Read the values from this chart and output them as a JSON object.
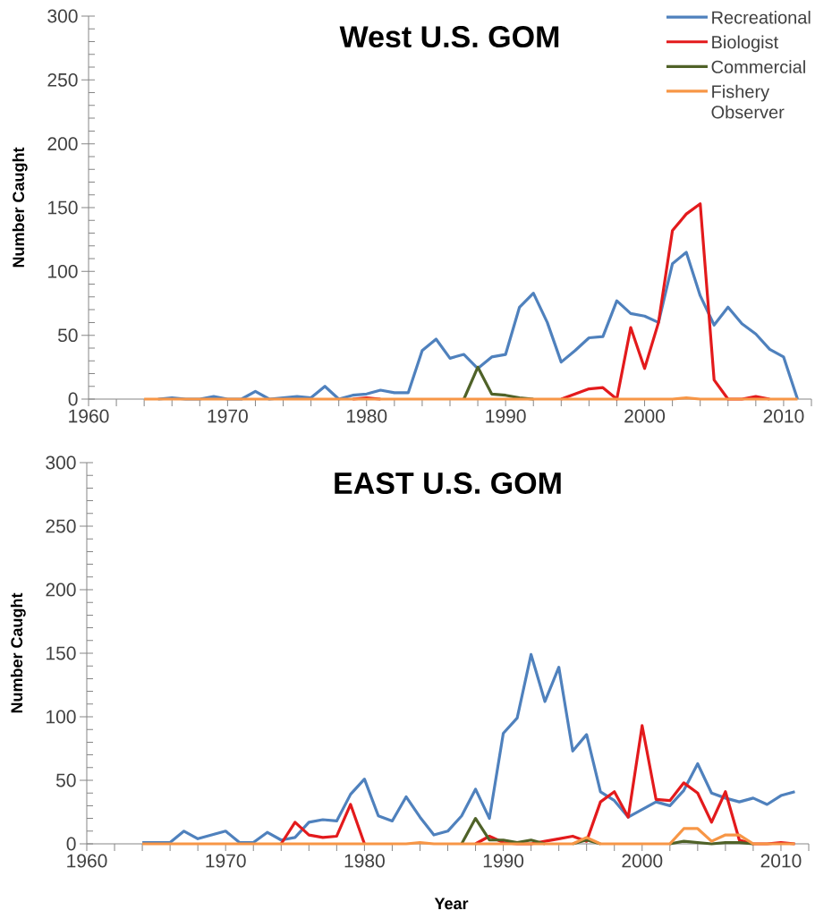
{
  "chart_data": [
    {
      "type": "line",
      "title": "West U.S. GOM",
      "ylabel": "Number Caught",
      "legend": "top right",
      "xlim": [
        1960,
        2012
      ],
      "ylim": [
        0,
        300
      ],
      "xticks": [
        1960,
        {
          "value": 1962,
          "label": null
        },
        {
          "value": 1964,
          "label": null
        },
        {
          "value": 1966,
          "label": null
        },
        {
          "value": 1968,
          "label": null
        },
        1970,
        {
          "value": 1972,
          "label": null
        },
        {
          "value": 1974,
          "label": null
        },
        {
          "value": 1976,
          "label": null
        },
        {
          "value": 1978,
          "label": null
        },
        1980,
        {
          "value": 1982,
          "label": null
        },
        {
          "value": 1984,
          "label": null
        },
        {
          "value": 1986,
          "label": null
        },
        {
          "value": 1988,
          "label": null
        },
        1990,
        {
          "value": 1992,
          "label": null
        },
        {
          "value": 1994,
          "label": null
        },
        {
          "value": 1996,
          "label": null
        },
        {
          "value": 1998,
          "label": null
        },
        2000,
        {
          "value": 2002,
          "label": null
        },
        {
          "value": 2004,
          "label": null
        },
        {
          "value": 2006,
          "label": null
        },
        {
          "value": 2008,
          "label": null
        },
        2010,
        {
          "value": 2012,
          "label": null
        }
      ],
      "yticks": [
        0,
        {
          "value": 10,
          "label": null
        },
        {
          "value": 20,
          "label": null
        },
        {
          "value": 30,
          "label": null
        },
        {
          "value": 40,
          "label": null
        },
        50,
        {
          "value": 60,
          "label": null
        },
        {
          "value": 70,
          "label": null
        },
        {
          "value": 80,
          "label": null
        },
        {
          "value": 90,
          "label": null
        },
        100,
        {
          "value": 110,
          "label": null
        },
        {
          "value": 120,
          "label": null
        },
        {
          "value": 130,
          "label": null
        },
        {
          "value": 140,
          "label": null
        },
        150,
        {
          "value": 160,
          "label": null
        },
        {
          "value": 170,
          "label": null
        },
        {
          "value": 180,
          "label": null
        },
        {
          "value": 190,
          "label": null
        },
        200,
        {
          "value": 210,
          "label": null
        },
        {
          "value": 220,
          "label": null
        },
        {
          "value": 230,
          "label": null
        },
        {
          "value": 240,
          "label": null
        },
        250,
        {
          "value": 260,
          "label": null
        },
        {
          "value": 270,
          "label": null
        },
        {
          "value": 280,
          "label": null
        },
        {
          "value": 290,
          "label": null
        },
        300
      ],
      "x": [
        1964,
        1965,
        1966,
        1967,
        1968,
        1969,
        1970,
        1971,
        1972,
        1973,
        1974,
        1975,
        1976,
        1977,
        1978,
        1979,
        1980,
        1981,
        1982,
        1983,
        1984,
        1985,
        1986,
        1987,
        1988,
        1989,
        1990,
        1991,
        1992,
        1993,
        1994,
        1995,
        1996,
        1997,
        1998,
        1999,
        2000,
        2001,
        2002,
        2003,
        2004,
        2005,
        2006,
        2007,
        2008,
        2009,
        2010,
        2011
      ],
      "series": [
        {
          "name": "Recreational",
          "color": "#4f81bd",
          "values": [
            null,
            0,
            1,
            0,
            0,
            2,
            0,
            0,
            6,
            0,
            1,
            2,
            1,
            10,
            0,
            3,
            4,
            7,
            5,
            5,
            38,
            47,
            32,
            35,
            24,
            33,
            35,
            72,
            83,
            60,
            29,
            38,
            48,
            49,
            77,
            67,
            65,
            60,
            106,
            115,
            81,
            58,
            72,
            59,
            51,
            39,
            33,
            0
          ]
        },
        {
          "name": "Biologist",
          "color": "#e31a1c",
          "values": [
            null,
            null,
            null,
            null,
            null,
            null,
            null,
            null,
            null,
            null,
            null,
            null,
            null,
            null,
            null,
            0,
            1,
            0,
            null,
            null,
            null,
            null,
            null,
            null,
            null,
            null,
            null,
            null,
            null,
            null,
            0,
            4,
            8,
            9,
            0,
            56,
            24,
            60,
            132,
            145,
            153,
            15,
            0,
            0,
            2,
            0,
            null,
            null
          ]
        },
        {
          "name": "Commercial",
          "color": "#4f6228",
          "values": [
            null,
            null,
            null,
            null,
            null,
            null,
            null,
            null,
            null,
            null,
            null,
            null,
            null,
            null,
            null,
            null,
            null,
            null,
            null,
            null,
            null,
            null,
            null,
            0,
            25,
            4,
            3,
            1,
            0,
            null,
            null,
            null,
            null,
            null,
            null,
            null,
            null,
            null,
            null,
            null,
            null,
            null,
            null,
            null,
            null,
            null,
            null,
            null
          ]
        },
        {
          "name": "Fishery Observer",
          "color": "#f79646",
          "values": [
            0,
            0,
            0,
            0,
            0,
            0,
            0,
            0,
            0,
            0,
            0,
            0,
            0,
            0,
            0,
            0,
            0,
            0,
            0,
            0,
            0,
            0,
            0,
            0,
            0,
            0,
            0,
            0,
            0,
            0,
            0,
            0,
            0,
            0,
            0,
            0,
            0,
            0,
            0,
            1,
            0,
            0,
            0,
            0,
            0,
            0,
            0,
            0
          ]
        }
      ]
    },
    {
      "type": "line",
      "title": "EAST U.S. GOM",
      "ylabel": "Number Caught",
      "xlabel": "Year",
      "xlim": [
        1960,
        2012
      ],
      "ylim": [
        0,
        300
      ],
      "xticks": [
        1960,
        {
          "value": 1962,
          "label": null
        },
        {
          "value": 1964,
          "label": null
        },
        {
          "value": 1966,
          "label": null
        },
        {
          "value": 1968,
          "label": null
        },
        1970,
        {
          "value": 1972,
          "label": null
        },
        {
          "value": 1974,
          "label": null
        },
        {
          "value": 1976,
          "label": null
        },
        {
          "value": 1978,
          "label": null
        },
        1980,
        {
          "value": 1982,
          "label": null
        },
        {
          "value": 1984,
          "label": null
        },
        {
          "value": 1986,
          "label": null
        },
        {
          "value": 1988,
          "label": null
        },
        1990,
        {
          "value": 1992,
          "label": null
        },
        {
          "value": 1994,
          "label": null
        },
        {
          "value": 1996,
          "label": null
        },
        {
          "value": 1998,
          "label": null
        },
        2000,
        {
          "value": 2002,
          "label": null
        },
        {
          "value": 2004,
          "label": null
        },
        {
          "value": 2006,
          "label": null
        },
        {
          "value": 2008,
          "label": null
        },
        2010,
        {
          "value": 2012,
          "label": null
        }
      ],
      "yticks": [
        0,
        {
          "value": 10,
          "label": null
        },
        {
          "value": 20,
          "label": null
        },
        {
          "value": 30,
          "label": null
        },
        {
          "value": 40,
          "label": null
        },
        50,
        {
          "value": 60,
          "label": null
        },
        {
          "value": 70,
          "label": null
        },
        {
          "value": 80,
          "label": null
        },
        {
          "value": 90,
          "label": null
        },
        100,
        {
          "value": 110,
          "label": null
        },
        {
          "value": 120,
          "label": null
        },
        {
          "value": 130,
          "label": null
        },
        {
          "value": 140,
          "label": null
        },
        150,
        {
          "value": 160,
          "label": null
        },
        {
          "value": 170,
          "label": null
        },
        {
          "value": 180,
          "label": null
        },
        {
          "value": 190,
          "label": null
        },
        200,
        {
          "value": 210,
          "label": null
        },
        {
          "value": 220,
          "label": null
        },
        {
          "value": 230,
          "label": null
        },
        {
          "value": 240,
          "label": null
        },
        250,
        {
          "value": 260,
          "label": null
        },
        {
          "value": 270,
          "label": null
        },
        {
          "value": 280,
          "label": null
        },
        {
          "value": 290,
          "label": null
        },
        300
      ],
      "x": [
        1964,
        1965,
        1966,
        1967,
        1968,
        1969,
        1970,
        1971,
        1972,
        1973,
        1974,
        1975,
        1976,
        1977,
        1978,
        1979,
        1980,
        1981,
        1982,
        1983,
        1984,
        1985,
        1986,
        1987,
        1988,
        1989,
        1990,
        1991,
        1992,
        1993,
        1994,
        1995,
        1996,
        1997,
        1998,
        1999,
        2000,
        2001,
        2002,
        2003,
        2004,
        2005,
        2006,
        2007,
        2008,
        2009,
        2010,
        2011
      ],
      "series": [
        {
          "color": "#4f81bd",
          "values": [
            1,
            1,
            1,
            10,
            4,
            7,
            10,
            1,
            1,
            9,
            3,
            5,
            17,
            19,
            18,
            39,
            51,
            22,
            18,
            37,
            21,
            7,
            10,
            22,
            43,
            20,
            87,
            99,
            149,
            112,
            139,
            73,
            86,
            41,
            34,
            21,
            27,
            33,
            30,
            42,
            63,
            40,
            36,
            33,
            36,
            31,
            38,
            41
          ]
        },
        {
          "color": "#e31a1c",
          "values": [
            null,
            null,
            null,
            null,
            null,
            null,
            null,
            null,
            null,
            null,
            0,
            17,
            7,
            5,
            6,
            31,
            0,
            null,
            null,
            null,
            null,
            null,
            null,
            null,
            0,
            6,
            1,
            0,
            0,
            2,
            4,
            6,
            2,
            33,
            41,
            21,
            93,
            35,
            34,
            48,
            40,
            17,
            41,
            3,
            0,
            0,
            1,
            0
          ]
        },
        {
          "color": "#4f6228",
          "values": [
            null,
            null,
            null,
            null,
            null,
            null,
            null,
            null,
            null,
            null,
            null,
            null,
            null,
            null,
            null,
            null,
            null,
            null,
            null,
            null,
            null,
            null,
            null,
            0,
            20,
            3,
            3,
            1,
            3,
            0,
            null,
            0,
            3,
            0,
            null,
            null,
            null,
            null,
            0,
            2,
            1,
            0,
            1,
            1,
            0,
            null,
            null,
            null
          ]
        },
        {
          "color": "#f79646",
          "values": [
            0,
            0,
            0,
            0,
            0,
            0,
            0,
            0,
            0,
            0,
            0,
            0,
            0,
            0,
            0,
            0,
            0,
            0,
            0,
            0,
            1,
            0,
            0,
            0,
            0,
            0,
            0,
            0,
            0,
            0,
            0,
            0,
            5,
            0,
            0,
            0,
            0,
            0,
            0,
            12,
            12,
            2,
            7,
            7,
            0,
            0,
            0,
            0
          ]
        }
      ]
    }
  ]
}
